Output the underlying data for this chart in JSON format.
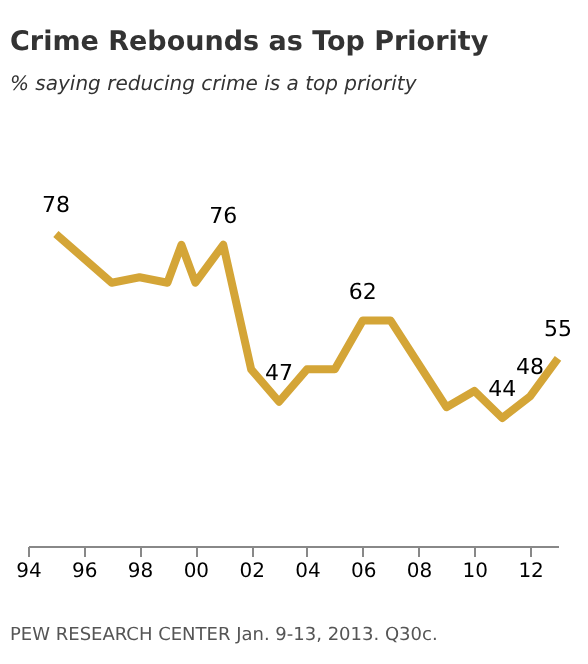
{
  "chart_data": {
    "type": "line",
    "title": "Crime Rebounds as Top Priority",
    "subtitle": "% saying reducing crime is a top priority",
    "x": [
      1995,
      1997,
      1998,
      1999,
      1999.5,
      2000,
      2001,
      2002,
      2003,
      2004,
      2005,
      2006,
      2007,
      2009,
      2010,
      2011,
      2012,
      2013
    ],
    "series": [
      {
        "color": "#d4a537",
        "values": [
          78,
          69,
          70,
          69,
          76,
          69,
          76,
          53,
          47,
          53,
          53,
          62,
          62,
          46,
          49,
          44,
          48,
          55
        ],
        "value_labels": [
          "78",
          null,
          null,
          null,
          null,
          null,
          "76",
          null,
          "47",
          null,
          null,
          "62",
          null,
          null,
          null,
          "44",
          "48",
          "55"
        ]
      }
    ],
    "xlim": [
      1994,
      2013
    ],
    "xticks": [
      {
        "value": 1994,
        "label": "94"
      },
      {
        "value": 1996,
        "label": "96"
      },
      {
        "value": 1998,
        "label": "98"
      },
      {
        "value": 2000,
        "label": "00"
      },
      {
        "value": 2002,
        "label": "02"
      },
      {
        "value": 2004,
        "label": "04"
      },
      {
        "value": 2006,
        "label": "06"
      },
      {
        "value": 2008,
        "label": "08"
      },
      {
        "value": 2010,
        "label": "10"
      },
      {
        "value": 2012,
        "label": "12"
      }
    ],
    "tick_labels": "x",
    "grid": false,
    "legend": false,
    "marker": "none",
    "line_style": "solid",
    "annotations": [
      "PEW RESEARCH CENTER Jan. 9-13, 2013. Q30c."
    ]
  }
}
